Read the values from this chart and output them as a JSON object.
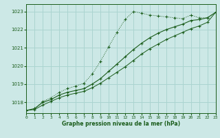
{
  "xlabel": "Graphe pression niveau de la mer (hPa)",
  "bg_color": "#cce8e6",
  "grid_color": "#aad4d0",
  "line_color": "#1a5c1a",
  "xmin": 0,
  "xmax": 23,
  "ymin": 1017.4,
  "ymax": 1023.4,
  "yticks": [
    1018,
    1019,
    1020,
    1021,
    1022,
    1023
  ],
  "xticks": [
    0,
    1,
    2,
    3,
    4,
    5,
    6,
    7,
    8,
    9,
    10,
    11,
    12,
    13,
    14,
    15,
    16,
    17,
    18,
    19,
    20,
    21,
    22,
    23
  ],
  "series1_x": [
    0,
    1,
    2,
    3,
    4,
    5,
    6,
    7,
    8,
    9,
    10,
    11,
    12,
    13,
    14,
    15,
    16,
    17,
    18,
    19,
    20,
    21,
    22,
    23
  ],
  "series1_y": [
    1017.55,
    1017.65,
    1018.05,
    1018.25,
    1018.55,
    1018.75,
    1018.9,
    1019.05,
    1019.55,
    1020.25,
    1021.05,
    1021.85,
    1022.55,
    1023.0,
    1022.9,
    1022.8,
    1022.75,
    1022.7,
    1022.65,
    1022.6,
    1022.8,
    1022.65,
    1022.65,
    1022.95
  ],
  "series2_x": [
    0,
    1,
    2,
    3,
    4,
    5,
    6,
    7,
    8,
    9,
    10,
    11,
    12,
    13,
    14,
    15,
    16,
    17,
    18,
    19,
    20,
    21,
    22,
    23
  ],
  "series2_y": [
    1017.55,
    1017.65,
    1018.0,
    1018.15,
    1018.4,
    1018.55,
    1018.65,
    1018.75,
    1019.0,
    1019.3,
    1019.7,
    1020.1,
    1020.5,
    1020.9,
    1021.25,
    1021.55,
    1021.8,
    1022.0,
    1022.15,
    1022.3,
    1022.5,
    1022.55,
    1022.65,
    1022.95
  ],
  "series3_x": [
    0,
    1,
    2,
    3,
    4,
    5,
    6,
    7,
    8,
    9,
    10,
    11,
    12,
    13,
    14,
    15,
    16,
    17,
    18,
    19,
    20,
    21,
    22,
    23
  ],
  "series3_y": [
    1017.55,
    1017.6,
    1017.85,
    1018.05,
    1018.25,
    1018.4,
    1018.5,
    1018.6,
    1018.8,
    1019.05,
    1019.35,
    1019.65,
    1019.95,
    1020.3,
    1020.65,
    1020.95,
    1021.2,
    1021.45,
    1021.65,
    1021.85,
    1022.05,
    1022.2,
    1022.4,
    1022.95
  ]
}
